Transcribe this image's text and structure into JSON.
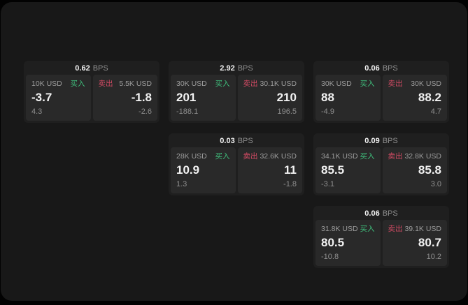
{
  "labels": {
    "bps_unit": "BPS",
    "buy": "买入",
    "sell": "卖出"
  },
  "colors": {
    "buy_green": "#3fbe7c",
    "sell_red": "#d04a63",
    "page_bg": "#181818",
    "card_bg": "#1f1f1f",
    "panel_bg": "#292929",
    "primary_text": "#f2f2f2",
    "secondary_text": "#8f8f8f"
  },
  "cards": [
    {
      "bps": "0.62",
      "buy": {
        "amount": "10K USD",
        "price": "-3.7",
        "secondary": "4.3"
      },
      "sell": {
        "amount": "5.5K USD",
        "price": "-1.8",
        "secondary": "-2.6"
      }
    },
    {
      "bps": "2.92",
      "buy": {
        "amount": "30K USD",
        "price": "201",
        "secondary": "-188.1"
      },
      "sell": {
        "amount": "30.1K USD",
        "price": "210",
        "secondary": "196.5"
      }
    },
    {
      "bps": "0.06",
      "buy": {
        "amount": "30K USD",
        "price": "88",
        "secondary": "-4.9"
      },
      "sell": {
        "amount": "30K USD",
        "price": "88.2",
        "secondary": "4.7"
      }
    },
    {
      "bps": "0.03",
      "buy": {
        "amount": "28K USD",
        "price": "10.9",
        "secondary": "1.3"
      },
      "sell": {
        "amount": "32.6K USD",
        "price": "11",
        "secondary": "-1.8"
      }
    },
    {
      "bps": "0.09",
      "buy": {
        "amount": "34.1K USD",
        "price": "85.5",
        "secondary": "-3.1"
      },
      "sell": {
        "amount": "32.8K USD",
        "price": "85.8",
        "secondary": "3.0"
      }
    },
    {
      "bps": "0.06",
      "buy": {
        "amount": "31.8K USD",
        "price": "80.5",
        "secondary": "-10.8"
      },
      "sell": {
        "amount": "39.1K USD",
        "price": "80.7",
        "secondary": "10.2"
      }
    }
  ]
}
